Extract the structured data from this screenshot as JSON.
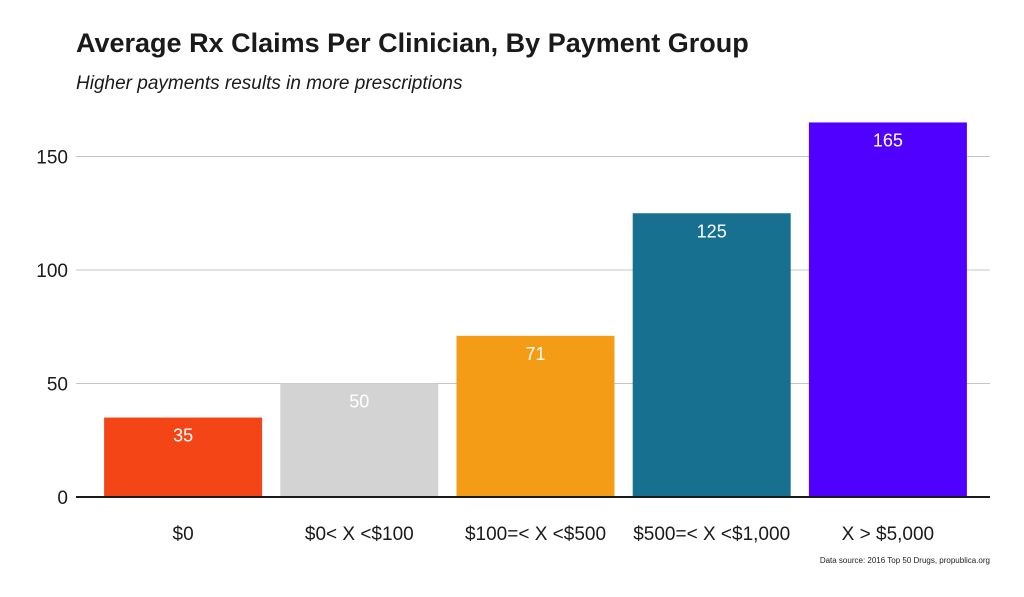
{
  "chart_data": {
    "type": "bar",
    "title": "Average Rx Claims Per Clinician, By Payment Group",
    "subtitle": "Higher payments results in more prescriptions",
    "categories": [
      "$0",
      "$0< X <$100",
      "$100=< X <$500",
      "$500=< X <$1,000",
      "X > $5,000"
    ],
    "values": [
      35,
      50,
      71,
      125,
      165
    ],
    "data_labels": [
      "35",
      "50",
      "71",
      "125",
      "165"
    ],
    "colors": [
      "#f44517",
      "#d3d3d3",
      "#f59c17",
      "#17708f",
      "#4f00ff"
    ],
    "ylim": [
      0,
      170
    ],
    "yticks": [
      0,
      50,
      100,
      150
    ],
    "grid": true,
    "legend": "none",
    "source": "Data source: 2016 Top 50 Drugs, propublica.org"
  }
}
